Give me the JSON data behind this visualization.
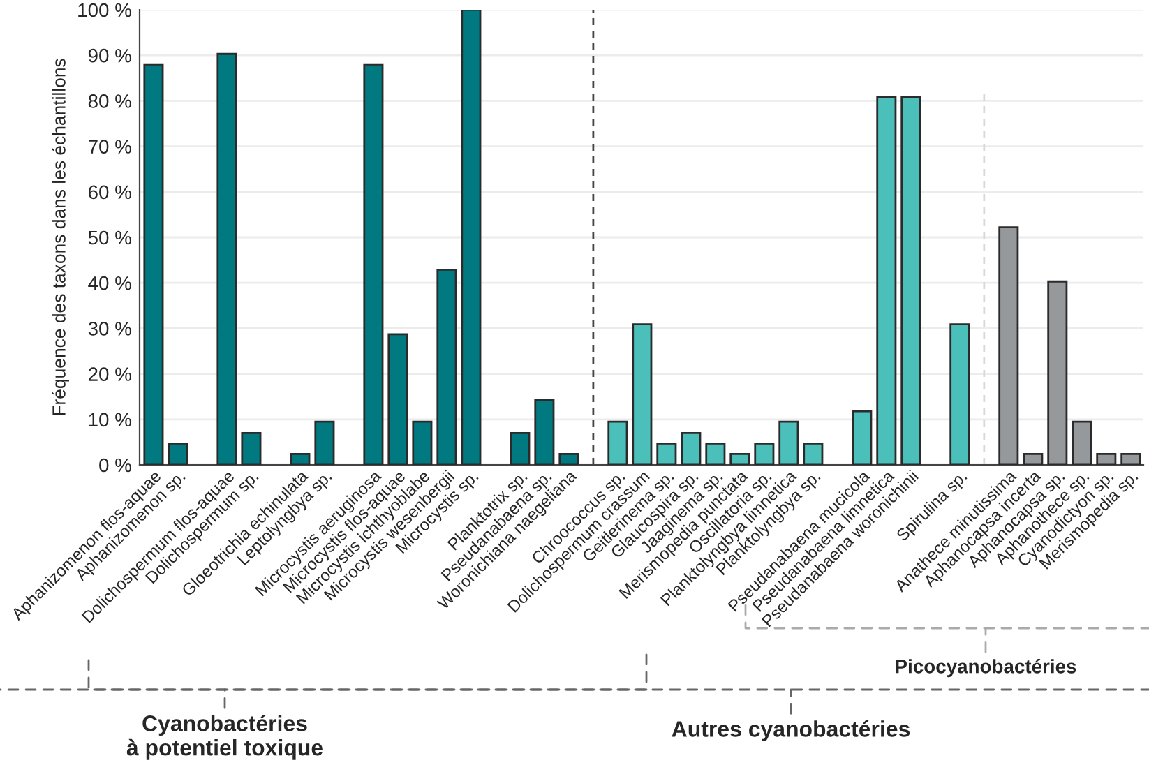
{
  "chart_data": {
    "type": "bar",
    "ylabel": "Fréquence des taxons dans les échantillons",
    "categories": [
      "Aphanizomenon flos-aquae",
      "Aphanizomenon sp.",
      null,
      "Dolichospermum flos-aquae",
      "Dolichospermum sp.",
      null,
      "Gloeotrichia echinulata",
      "Leptolyngbya sp.",
      null,
      "Microcystis aeruginosa",
      "Microcystis flos-aquae",
      "Microcystis ichthyoblabe",
      "Microcystis wesenbergii",
      "Microcystis sp.",
      null,
      "Planktotrix sp.",
      "Pseudanabaena sp.",
      "Woronichiana naegeliana",
      null,
      "Chroococcus sp.",
      "Dolichospermum crassum",
      "Geitlerinema sp.",
      "Glaucospira sp.",
      "Jaaginema sp.",
      "Merismopedia punctata",
      "Oscillatoria sp.",
      "Planktolyngbya limnetica",
      "Planktolyngbya sp.",
      null,
      "Pseudanabaena mucicola",
      "Pseudanabaena limnetica",
      "Pseudanabaena woronichinii",
      null,
      "Spirulina sp.",
      null,
      "Anathece minutissima",
      "Aphanocapsa incerta",
      "Aphanocapsa sp.",
      "Aphanothece sp.",
      "Cyanodictyon sp.",
      "Merismopedia sp."
    ],
    "values": [
      88,
      4.7,
      null,
      90.3,
      7,
      null,
      2.4,
      9.5,
      null,
      88,
      28.7,
      9.5,
      42.9,
      100,
      null,
      7,
      14.3,
      2.4,
      null,
      9.5,
      30.9,
      4.7,
      7,
      4.7,
      2.4,
      4.7,
      9.5,
      4.7,
      null,
      11.8,
      80.8,
      80.8,
      null,
      30.9,
      null,
      52.2,
      2.4,
      40.3,
      9.5,
      2.4,
      2.4
    ],
    "colors": [
      "#007a80",
      "#007a80",
      null,
      "#007a80",
      "#007a80",
      null,
      "#007a80",
      "#007a80",
      null,
      "#007a80",
      "#007a80",
      "#007a80",
      "#007a80",
      "#007a80",
      null,
      "#007a80",
      "#007a80",
      "#007a80",
      null,
      "#4bbfba",
      "#4bbfba",
      "#4bbfba",
      "#4bbfba",
      "#4bbfba",
      "#4bbfba",
      "#4bbfba",
      "#4bbfba",
      "#4bbfba",
      null,
      "#4bbfba",
      "#4bbfba",
      "#4bbfba",
      null,
      "#4bbfba",
      null,
      "#95999b",
      "#95999b",
      "#95999b",
      "#95999b",
      "#95999b",
      "#95999b"
    ],
    "ylim": [
      0,
      100
    ],
    "yticks": [
      {
        "value": 0,
        "label": "0 %"
      },
      {
        "value": 10,
        "label": "10 %"
      },
      {
        "value": 20,
        "label": "20 %"
      },
      {
        "value": 30,
        "label": "30 %"
      },
      {
        "value": 40,
        "label": "40 %"
      },
      {
        "value": 50,
        "label": "50 %"
      },
      {
        "value": 60,
        "label": "60 %"
      },
      {
        "value": 70,
        "label": "70 %"
      },
      {
        "value": 80,
        "label": "80 %"
      },
      {
        "value": 90,
        "label": "90 %"
      },
      {
        "value": 100,
        "label": "100 %"
      }
    ],
    "grid": "y",
    "legend": false,
    "annotations": [
      "Cyanobactéries\nà potentiel toxique",
      "Autres cyanobactéries",
      "Picocyanobactéries"
    ]
  }
}
